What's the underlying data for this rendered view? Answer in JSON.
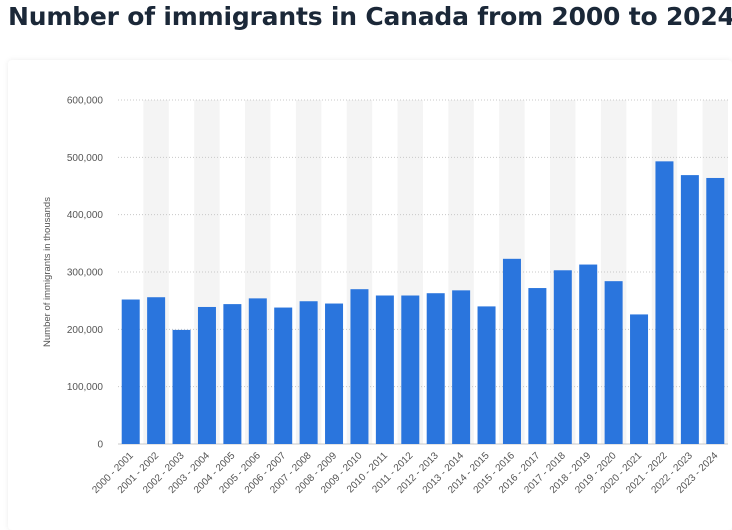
{
  "title": "Number of immigrants in Canada from 2000 to 2024",
  "colors": {
    "bar": "#2a75dd",
    "band": "#f4f4f4",
    "grid": "#c8c8c8",
    "title": "#1b2838"
  },
  "chart_data": {
    "type": "bar",
    "title": "Number of immigrants in Canada from 2000 to 2024",
    "xlabel": "",
    "ylabel": "Number of immigrants in thousands",
    "ylim": [
      0,
      600000
    ],
    "yticks": [
      0,
      100000,
      200000,
      300000,
      400000,
      500000,
      600000
    ],
    "ytick_labels": [
      "0",
      "100,000",
      "200,000",
      "300,000",
      "400,000",
      "500,000",
      "600,000"
    ],
    "grid": true,
    "categories": [
      "2000 - 2001",
      "2001 - 2002",
      "2002 - 2003",
      "2003 - 2004",
      "2004 - 2005",
      "2005 - 2006",
      "2006 - 2007",
      "2007 - 2008",
      "2008 - 2009",
      "2009 - 2010",
      "2010 - 2011",
      "2011 - 2012",
      "2012 - 2013",
      "2013 - 2014",
      "2014 - 2015",
      "2015 - 2016",
      "2016 - 2017",
      "2017 - 2018",
      "2018 - 2019",
      "2019 - 2020",
      "2020 - 2021",
      "2021 - 2022",
      "2022 - 2023",
      "2023 - 2024"
    ],
    "values": [
      252000,
      256000,
      199000,
      239000,
      244000,
      254000,
      238000,
      249000,
      245000,
      270000,
      259000,
      259000,
      263000,
      268000,
      240000,
      323000,
      272000,
      303000,
      313000,
      284000,
      226000,
      493000,
      469000,
      464000
    ]
  }
}
